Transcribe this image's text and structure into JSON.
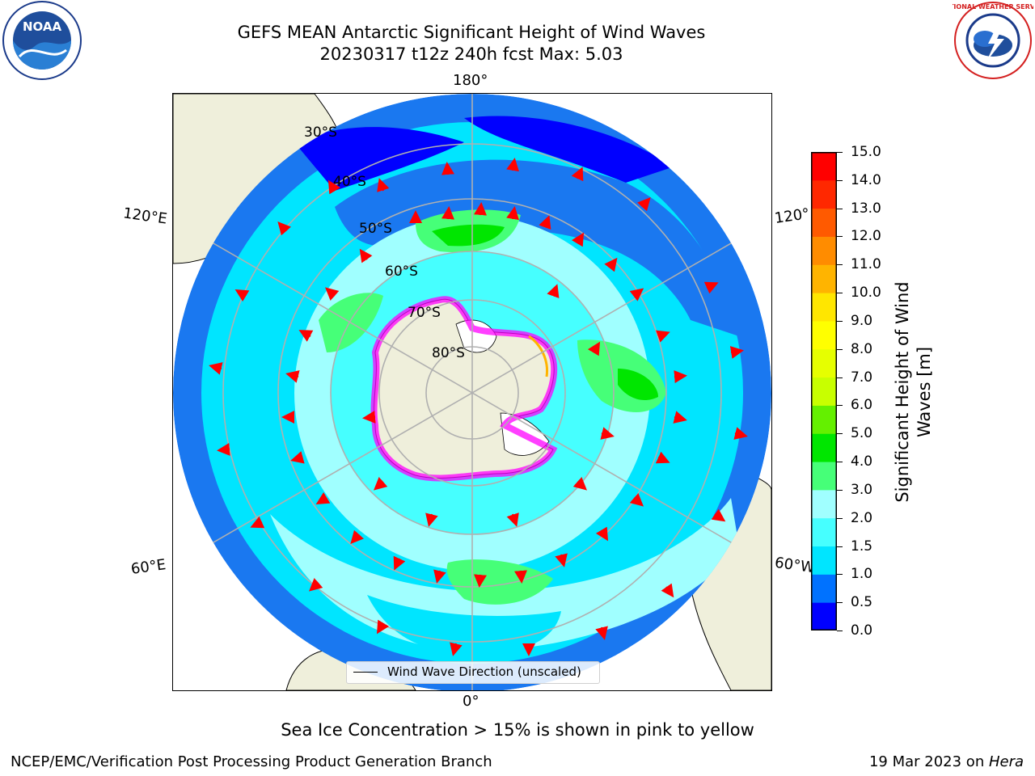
{
  "title": {
    "line1": "GEFS MEAN Antarctic Significant Height of Wind Waves",
    "line2": "20230317 t12z 240h fcst   Max: 5.03"
  },
  "logos": {
    "left": "noaa-logo",
    "right": "nws-logo",
    "left_text": "NOAA",
    "right_text": "NATIONAL WEATHER SERVICE"
  },
  "map": {
    "projection": "south-polar-stereographic",
    "lon_labels": {
      "top": "180°",
      "bottom": "0°",
      "upper_left": "120°E",
      "upper_right": "120°",
      "lower_left": "60°E",
      "lower_right": "60°W"
    },
    "lat_labels": [
      "30°S",
      "40°S",
      "50°S",
      "60°S",
      "70°S",
      "80°S"
    ],
    "legend_label": "Wind Wave Direction (unscaled)",
    "arrow_color": "#ff0000",
    "land_color": "#efefdb",
    "ice_colors": [
      "#ff00ff",
      "#ffff00"
    ]
  },
  "colorbar": {
    "label": "Significant Height of Wind Waves [m]",
    "label_line1": "Significant Height of Wind",
    "label_line2": "Waves [m]",
    "ticks": [
      "15.0",
      "14.0",
      "13.0",
      "12.0",
      "11.0",
      "10.0",
      "9.0",
      "8.0",
      "7.0",
      "6.0",
      "5.0",
      "4.0",
      "3.0",
      "2.0",
      "1.5",
      "1.0",
      "0.5",
      "0.0"
    ],
    "colors": [
      "#0000ff",
      "#0072ff",
      "#00e5ff",
      "#46ffff",
      "#a0ffff",
      "#46ff78",
      "#00e600",
      "#64f000",
      "#c8ff00",
      "#e6ff00",
      "#ffff00",
      "#ffe600",
      "#ffb400",
      "#ff8c00",
      "#ff5a00",
      "#ff2800",
      "#ff0000"
    ]
  },
  "note": "Sea Ice Concentration > 15% is shown in pink to yellow",
  "footer": {
    "left": "NCEP/EMC/Verification Post Processing Product Generation Branch",
    "date": "19 Mar 2023 on ",
    "host": "Hera"
  }
}
